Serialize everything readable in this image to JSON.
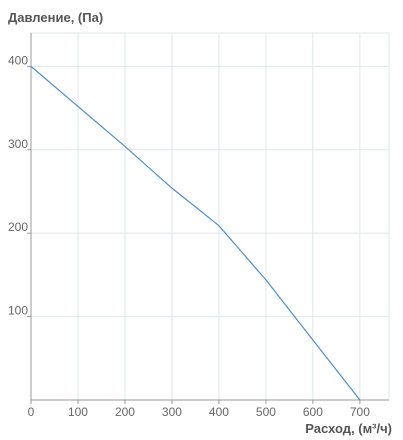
{
  "chart_data": {
    "type": "line",
    "title": "Давление, (Па)",
    "x_label": "Расход, (м³/ч)",
    "x": [
      0,
      100,
      200,
      300,
      400,
      500,
      600,
      700
    ],
    "series": [
      {
        "color": "#4a8fd6",
        "values": [
          400,
          352,
          304,
          254,
          209,
          144,
          72,
          0
        ]
      }
    ],
    "xlim": [
      0,
      762
    ],
    "xticks": [
      0,
      100,
      200,
      300,
      400,
      500,
      600,
      700
    ],
    "ylim": [
      0,
      440
    ],
    "yticks": [
      100,
      200,
      300,
      400
    ],
    "grid": true
  }
}
